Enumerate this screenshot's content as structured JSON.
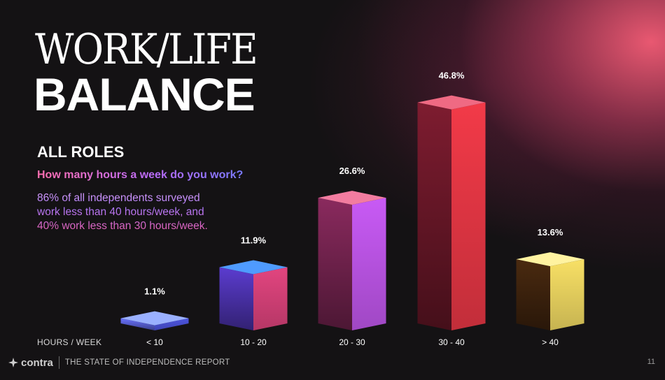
{
  "slide": {
    "title_line1": "WORK/LIFE",
    "title_line2": "BALANCE",
    "section_title": "ALL ROLES",
    "question": "How many hours a week do you work?",
    "summary": "86% of all independents surveyed work less than 40 hours/week, and 40% work less than 30 hours/week.",
    "page_number": "11"
  },
  "footer": {
    "logo_text": "contra",
    "report_title": "THE STATE OF INDEPENDENCE REPORT"
  },
  "colors": {
    "background": "#141214",
    "glow": "#f45c76",
    "text": "#ffffff"
  },
  "chart_data": {
    "type": "bar",
    "style": "3d-columns",
    "xlabel": "HOURS / WEEK",
    "ylabel": "",
    "categories": [
      "< 10",
      "10 - 20",
      "20 - 30",
      "30 - 40",
      "> 40"
    ],
    "values": [
      1.1,
      11.9,
      26.6,
      46.8,
      13.6
    ],
    "value_labels": [
      "1.1%",
      "11.9%",
      "26.6%",
      "46.8%",
      "13.6%"
    ],
    "unit": "%",
    "ylim": [
      0,
      50
    ],
    "grid": false,
    "legend": "none",
    "bar_colors": [
      {
        "top": "#9ab0ff",
        "front": "#6a72ff",
        "side": "#4d55e0"
      },
      {
        "top": "#4f9bff",
        "front": "#5b3ccf",
        "side": "#e2457f"
      },
      {
        "top": "#f27ca0",
        "front": "#8a2a5e",
        "side": "#c85af5"
      },
      {
        "top": "#ef6a83",
        "front": "#7e1c30",
        "side": "#f23a48"
      },
      {
        "top": "#fff3a0",
        "front": "#4a2a10",
        "side": "#f8e065"
      }
    ]
  }
}
